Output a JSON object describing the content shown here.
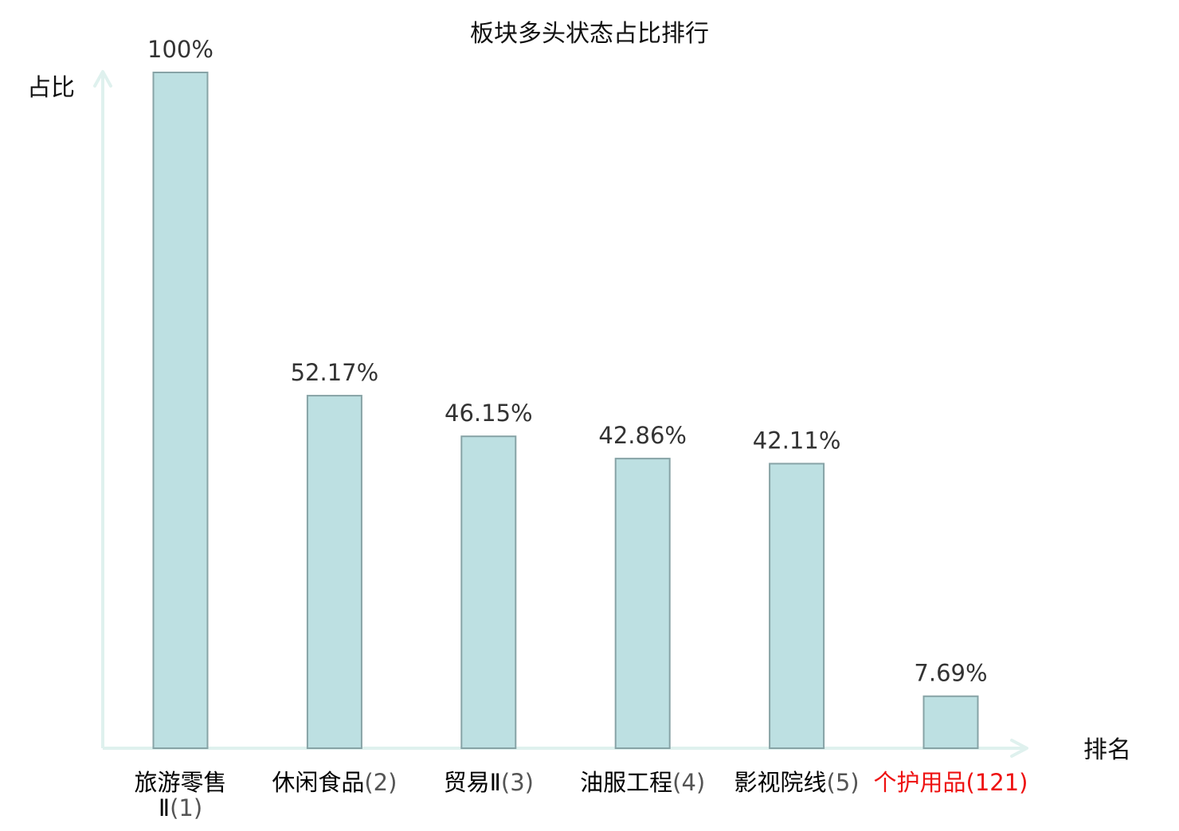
{
  "chart_data": {
    "type": "bar",
    "title": "板块多头状态占比排行",
    "ylabel": "占比",
    "xlabel": "排名",
    "ylim": [
      0,
      100
    ],
    "grid": false,
    "legend": "none",
    "categories": [
      {
        "name": "旅游零售Ⅱ",
        "rank": "(1)",
        "highlight": false
      },
      {
        "name": "休闲食品",
        "rank": "(2)",
        "highlight": false
      },
      {
        "name": "贸易Ⅱ",
        "rank": "(3)",
        "highlight": false
      },
      {
        "name": "油服工程",
        "rank": "(4)",
        "highlight": false
      },
      {
        "name": "影视院线",
        "rank": "(5)",
        "highlight": false
      },
      {
        "name": "个护用品",
        "rank": "(121)",
        "highlight": true
      }
    ],
    "values": [
      100,
      52.17,
      46.15,
      42.86,
      42.11,
      7.69
    ],
    "value_labels": [
      "100%",
      "52.17%",
      "46.15%",
      "42.86%",
      "42.11%",
      "7.69%"
    ],
    "colors": {
      "bar_fill": "#bde0e2",
      "bar_stroke": "#87a3a6",
      "axis": "#dff1ee",
      "label_text": "#333333",
      "category_text": "#000000",
      "rank_text": "#555555",
      "highlight_text": "#ee1111"
    }
  }
}
